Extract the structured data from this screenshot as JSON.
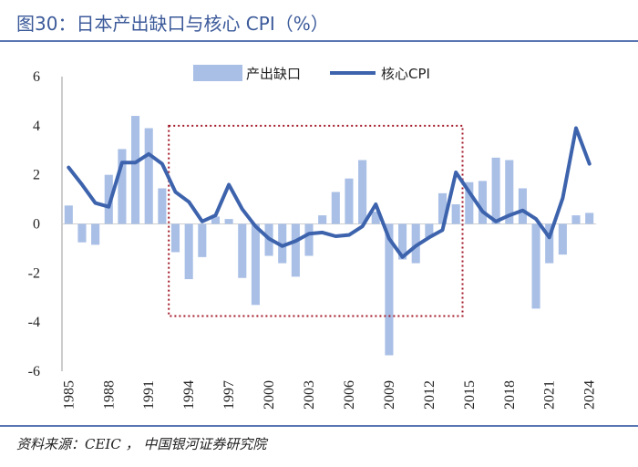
{
  "title": "图30：日本产出缺口与核心 CPI（%）",
  "source": "资料来源：CEIC ， 中国银河证券研究院",
  "colors": {
    "bar": "#a9bfe6",
    "line": "#3d63ad",
    "box": "#a3192a",
    "axis": "#999999"
  },
  "chart_data": {
    "type": "bar+line",
    "x": [
      1985,
      1986,
      1987,
      1988,
      1989,
      1990,
      1991,
      1992,
      1993,
      1994,
      1995,
      1996,
      1997,
      1998,
      1999,
      2000,
      2001,
      2002,
      2003,
      2004,
      2005,
      2006,
      2007,
      2008,
      2009,
      2010,
      2011,
      2012,
      2013,
      2014,
      2015,
      2016,
      2017,
      2018,
      2019,
      2020,
      2021,
      2022,
      2023,
      2024
    ],
    "xtick_labels": [
      "1985",
      "1988",
      "1991",
      "1994",
      "1997",
      "2000",
      "2003",
      "2006",
      "2009",
      "2012",
      "2015",
      "2018",
      "2021",
      "2024"
    ],
    "ylim": [
      -6,
      6
    ],
    "yticks": [
      "-6",
      "-4",
      "-2",
      "0",
      "2",
      "4",
      "6"
    ],
    "series": [
      {
        "name": "产出缺口",
        "type": "bar",
        "values": [
          0.75,
          -0.75,
          -0.85,
          2.0,
          3.05,
          4.4,
          3.9,
          1.45,
          -1.15,
          -2.25,
          -1.35,
          0.3,
          0.2,
          -2.2,
          -3.3,
          -1.3,
          -1.6,
          -2.15,
          -1.3,
          0.35,
          1.3,
          1.85,
          2.6,
          0.5,
          -5.35,
          -1.45,
          -1.6,
          -0.55,
          1.25,
          0.8,
          1.7,
          1.75,
          2.7,
          2.6,
          1.45,
          -3.45,
          -1.6,
          -1.25,
          0.35,
          0.45
        ]
      },
      {
        "name": "核心CPI",
        "type": "line",
        "values": [
          2.3,
          1.6,
          0.85,
          0.7,
          2.5,
          2.5,
          2.85,
          2.45,
          1.3,
          0.9,
          0.1,
          0.35,
          1.6,
          0.6,
          -0.1,
          -0.6,
          -0.9,
          -0.7,
          -0.4,
          -0.35,
          -0.5,
          -0.45,
          -0.1,
          0.8,
          -0.6,
          -1.35,
          -0.9,
          -0.55,
          -0.25,
          2.1,
          1.3,
          0.5,
          0.1,
          0.35,
          0.55,
          0.2,
          -0.55,
          1.05,
          3.9,
          2.45
        ]
      }
    ],
    "highlight_box": {
      "x_from": 1992.5,
      "x_to": 2014.5,
      "y_from": -3.75,
      "y_to": 4.0
    },
    "legend": "top-center"
  }
}
